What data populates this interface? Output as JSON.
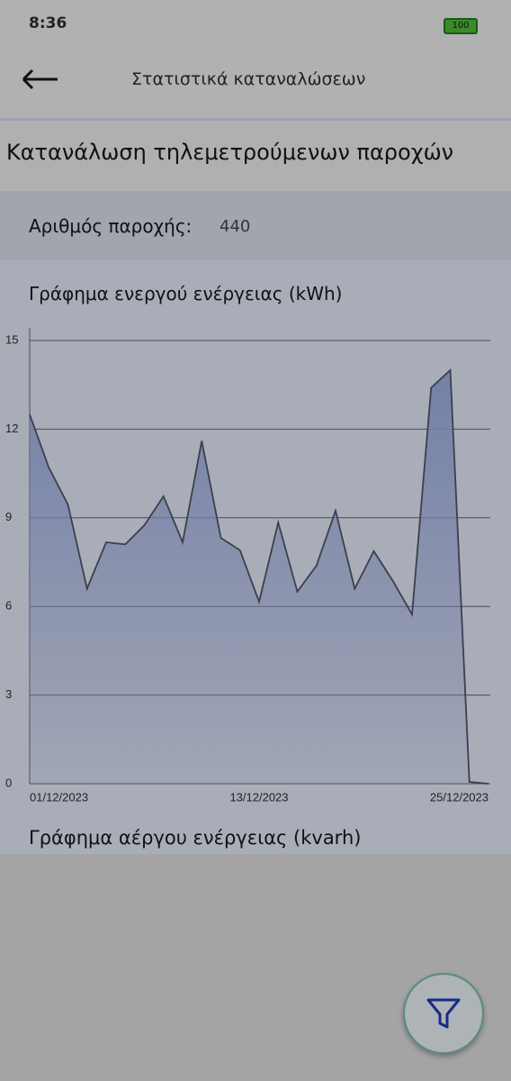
{
  "status_bar": {
    "time": "8:36",
    "battery": "100"
  },
  "header": {
    "title": "Στατιστικά καταναλώσεων"
  },
  "section_title": "Κατανάλωση τηλεμετρούμενων παροχών",
  "supply": {
    "label": "Αριθμός παροχής:",
    "value": "440"
  },
  "chart_data": {
    "type": "area",
    "title": "Γράφημα ενεργού ενέργειας (kWh)",
    "categories": [
      "01/12/2023",
      null,
      null,
      null,
      null,
      null,
      null,
      null,
      null,
      null,
      null,
      null,
      "13/12/2023",
      null,
      null,
      null,
      null,
      null,
      null,
      null,
      null,
      null,
      null,
      null,
      "25/12/2023"
    ],
    "values": [
      12.5,
      10.7,
      9.45,
      6.6,
      8.17,
      8.1,
      8.75,
      9.73,
      8.17,
      11.6,
      8.32,
      7.9,
      6.16,
      8.84,
      6.5,
      7.38,
      9.24,
      6.6,
      7.87,
      6.86,
      5.73,
      13.4,
      14.0,
      0.06,
      0
    ],
    "color": "#7480a6",
    "line_color": "#3c3f4e",
    "ylim": [
      0,
      15
    ],
    "yticks": [
      0,
      3,
      6,
      9,
      12,
      15
    ],
    "grid": true
  },
  "next_chart_title": "Γράφημα αέργου ενέργειας (kvarh)"
}
